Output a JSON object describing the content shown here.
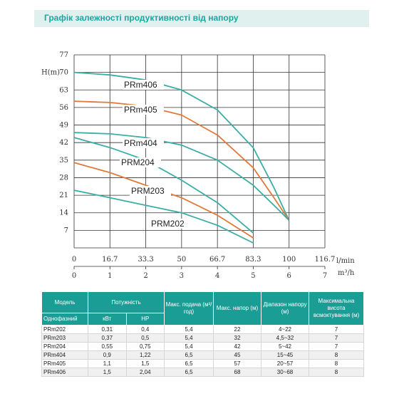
{
  "title": "Графік залежності продуктивності від напору",
  "colors": {
    "accent": "#1a9d94",
    "teal_curve": "#3aaea5",
    "orange_curve": "#e07a3c",
    "banner_bg": "#dff0ef"
  },
  "chart_data": {
    "type": "line",
    "ylabel": "H(m)",
    "xlabel_lmin": "l/min",
    "xlabel_m3h": "m³/h",
    "ylim": [
      0,
      77
    ],
    "xlim_lmin": [
      0,
      116.7
    ],
    "xlim_m3h": [
      0,
      7
    ],
    "y_ticks": [
      7,
      14,
      21,
      28,
      35,
      42,
      49,
      56,
      63,
      70,
      77
    ],
    "x_ticks_lmin": [
      "0",
      "16.7",
      "33.3",
      "50",
      "66.7",
      "83.3",
      "100",
      "116.7"
    ],
    "x_ticks_m3h": [
      "0",
      "1",
      "2",
      "3",
      "4",
      "5",
      "6",
      "7"
    ],
    "grid": true,
    "series": [
      {
        "name": "PRm406",
        "color": "teal",
        "x": [
          0,
          16.7,
          33.3,
          50,
          66.7,
          83.3,
          93,
          100
        ],
        "y": [
          70,
          69,
          67,
          63,
          55,
          40,
          24,
          11
        ]
      },
      {
        "name": "PRm405",
        "color": "orange",
        "x": [
          0,
          16.7,
          33.3,
          50,
          66.7,
          83.3,
          93,
          100
        ],
        "y": [
          58.5,
          58,
          56.5,
          53,
          45,
          32,
          20,
          11
        ]
      },
      {
        "name": "PRm404",
        "color": "teal",
        "x": [
          0,
          16.7,
          33.3,
          50,
          66.7,
          83.3,
          93,
          100
        ],
        "y": [
          46,
          45.5,
          44,
          41,
          35,
          25,
          17,
          11
        ]
      },
      {
        "name": "PRM204",
        "color": "teal",
        "x": [
          0,
          16.7,
          33.3,
          50,
          66.7,
          83.3
        ],
        "y": [
          44,
          40,
          35,
          27,
          18,
          6
        ]
      },
      {
        "name": "PRM203",
        "color": "orange",
        "x": [
          0,
          16.7,
          33.3,
          50,
          66.7,
          83.3
        ],
        "y": [
          34,
          30,
          25,
          20,
          13,
          4
        ]
      },
      {
        "name": "PRM202",
        "color": "teal",
        "x": [
          0,
          16.7,
          33.3,
          50,
          66.7,
          83.3
        ],
        "y": [
          23,
          20,
          17,
          14,
          9,
          2
        ]
      }
    ]
  },
  "table": {
    "headers": {
      "model": "Модель",
      "power": "Потужність",
      "max_flow": "Макс. подача (м³/год)",
      "max_head": "Макс. напор (м)",
      "head_range": "Діапазон напору (м)",
      "max_suction": "Максимальна висота всмоктування (м)",
      "phase": "Однофазний",
      "kw": "кВт",
      "hp": "HP"
    },
    "rows": [
      [
        "PRm202",
        "0,31",
        "0,4",
        "5,4",
        "22",
        "4~22",
        "7"
      ],
      [
        "PRm203",
        "0,37",
        "0,5",
        "5,4",
        "32",
        "4,5~32",
        "7"
      ],
      [
        "PRm204",
        "0,55",
        "0,75",
        "5,4",
        "42",
        "5~42",
        "7"
      ],
      [
        "PRm404",
        "0,9",
        "1,22",
        "6,5",
        "45",
        "15~45",
        "8"
      ],
      [
        "PRm405",
        "1,1",
        "1,5",
        "6,5",
        "57",
        "20~57",
        "8"
      ],
      [
        "PRm406",
        "1,5",
        "2,04",
        "6,5",
        "68",
        "30~68",
        "8"
      ]
    ]
  }
}
